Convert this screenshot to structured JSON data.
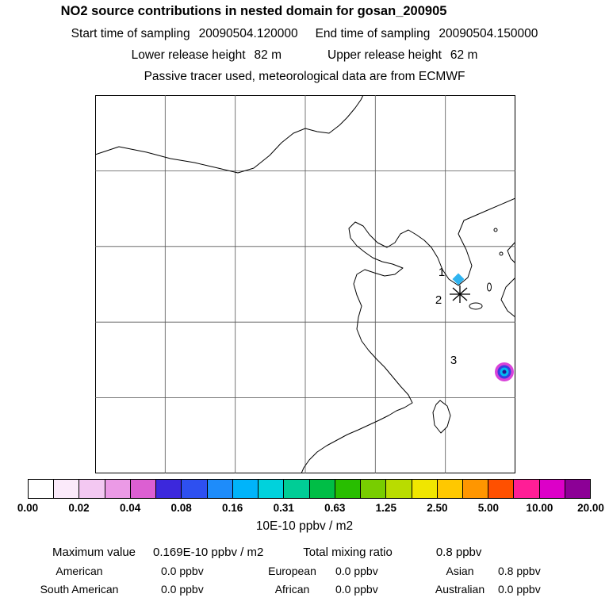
{
  "title": "NO2 source contributions in nested domain for gosan_200905",
  "header": {
    "start_time_label": "Start time of sampling",
    "start_time_value": "20090504.120000",
    "end_time_label": "End time of sampling",
    "end_time_value": "20090504.150000",
    "lower_release_label": "Lower release height",
    "lower_release_value": "82 m",
    "upper_release_label": "Upper release height",
    "upper_release_value": "62 m",
    "tracer_note": "Passive tracer used, meteorological data are from ECMWF"
  },
  "map": {
    "markers": [
      {
        "label": "1",
        "type": "diamond",
        "fill": "#2fb4f0",
        "stroke": "#e23ae2"
      },
      {
        "label": "2",
        "type": "asterisk",
        "color": "#000000"
      },
      {
        "label": "3",
        "type": "plume-blob",
        "rings": [
          "#d944d9",
          "#3a3ce0",
          "#00b9f0",
          "#26128c"
        ]
      }
    ]
  },
  "colorbar": {
    "tick_labels": [
      "0.00",
      "0.02",
      "0.04",
      "0.08",
      "0.16",
      "0.31",
      "0.63",
      "1.25",
      "2.50",
      "5.00",
      "10.00",
      "20.00"
    ],
    "unit_label": "10E-10 ppbv / m2",
    "segment_colors": [
      "#ffffff",
      "#fbeafa",
      "#f3c8f2",
      "#eb9ae6",
      "#dc5fd2",
      "#3c28dc",
      "#2e50f0",
      "#1e8cfa",
      "#00b4fa",
      "#00d2dc",
      "#00cd96",
      "#00be46",
      "#28be00",
      "#78cd00",
      "#b9dc00",
      "#f0e600",
      "#ffc800",
      "#ff9600",
      "#ff5000",
      "#ff1e96",
      "#dc00c8",
      "#8c0096"
    ]
  },
  "footer": {
    "maximum_value_label": "Maximum value",
    "maximum_value": "0.169E-10 ppbv / m2",
    "total_mixing_label": "Total mixing ratio",
    "total_mixing_value": "0.8 ppbv",
    "regions": [
      {
        "name": "American",
        "value": "0.0 ppbv"
      },
      {
        "name": "European",
        "value": "0.0 ppbv"
      },
      {
        "name": "Asian",
        "value": "0.8 ppbv"
      },
      {
        "name": "South American",
        "value": "0.0 ppbv"
      },
      {
        "name": "African",
        "value": "0.0 ppbv"
      },
      {
        "name": "Australian",
        "value": "0.0 ppbv"
      }
    ]
  },
  "chart_data": {
    "type": "heatmap",
    "title": "NO2 source contributions in nested domain for gosan_200905",
    "subtitle": [
      "Start time of sampling 20090504.120000  End time of sampling 20090504.150000",
      "Lower release height 82 m  Upper release height 62 m",
      "Passive tracer used, meteorological data are from ECMWF"
    ],
    "map_region": "East Asia (China, Korea, Japan, Taiwan)",
    "colorbar": {
      "scale": "logarithmic",
      "tick_values": [
        0.0,
        0.02,
        0.04,
        0.08,
        0.16,
        0.31,
        0.63,
        1.25,
        2.5,
        5.0,
        10.0,
        20.0
      ],
      "unit": "10E-10 ppbv / m2"
    },
    "receptor_markers": [
      "1",
      "2",
      "3"
    ],
    "maximum_value": "0.169E-10 ppbv / m2",
    "total_mixing_ratio": "0.8 ppbv",
    "regional_contributions": [
      {
        "region": "American",
        "mixing_ratio_ppbv": 0.0
      },
      {
        "region": "European",
        "mixing_ratio_ppbv": 0.0
      },
      {
        "region": "Asian",
        "mixing_ratio_ppbv": 0.8
      },
      {
        "region": "South American",
        "mixing_ratio_ppbv": 0.0
      },
      {
        "region": "African",
        "mixing_ratio_ppbv": 0.0
      },
      {
        "region": "Australian",
        "mixing_ratio_ppbv": 0.0
      }
    ]
  }
}
